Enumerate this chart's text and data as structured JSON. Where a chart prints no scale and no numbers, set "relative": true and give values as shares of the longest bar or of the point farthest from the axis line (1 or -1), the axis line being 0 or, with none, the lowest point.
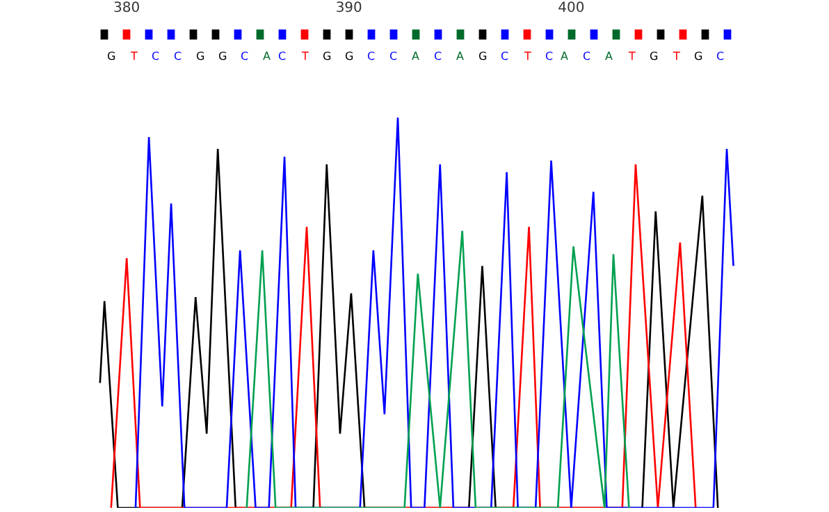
{
  "chart_data": {
    "type": "line",
    "relative": true,
    "marker": "none",
    "line_style": "solid",
    "xlim": [
      374.3,
      411.6
    ],
    "xticks": [
      380,
      390,
      400
    ],
    "annotations": [
      "G",
      "T",
      "C",
      "C",
      "G",
      "G",
      "C",
      "A",
      "C",
      "T",
      "G",
      "G",
      "C",
      "C",
      "A",
      "C",
      "A",
      "G",
      "C",
      "T",
      "C",
      "A",
      "C",
      "A",
      "T",
      "G",
      "T",
      "G",
      "C"
    ],
    "colors": [
      "#000000",
      "#ff0000",
      "#0000ff",
      "#0000ff",
      "#000000",
      "#000000",
      "#0000ff",
      "#006a2a",
      "#0000ff",
      "#ff0000",
      "#000000",
      "#000000",
      "#0000ff",
      "#0000ff",
      "#006a2a",
      "#0000ff",
      "#006a2a",
      "#000000",
      "#0000ff",
      "#ff0000",
      "#0000ff",
      "#006a2a",
      "#0000ff",
      "#006a2a",
      "#ff0000",
      "#000000",
      "#ff0000",
      "#000000",
      "#0000ff"
    ],
    "series": [
      {
        "color": "#000000",
        "x": [
          378.8,
          379.0,
          379.6,
          382.5,
          383.1,
          383.6,
          384.1,
          384.9,
          388.4,
          389.0,
          389.6,
          390.1,
          390.7,
          395.4,
          396.0,
          396.6,
          403.2,
          403.8,
          404.6,
          405.9,
          406.6
        ],
        "values": [
          0.32,
          0.53,
          0,
          0,
          0.54,
          0.19,
          0.92,
          0,
          0,
          0.88,
          0.19,
          0.55,
          0,
          0,
          0.62,
          0,
          0,
          0.76,
          0,
          0.8,
          0
        ]
      },
      {
        "color": "#ff0000",
        "x": [
          379.3,
          380.0,
          380.6,
          387.4,
          388.1,
          388.7,
          397.4,
          398.1,
          398.6,
          402.3,
          402.9,
          403.9,
          404.9,
          405.6
        ],
        "values": [
          0,
          0.64,
          0,
          0,
          0.72,
          0,
          0,
          0.72,
          0,
          0,
          0.88,
          0,
          0.68,
          0
        ]
      },
      {
        "color": "#0000ff",
        "x": [
          380.4,
          381.0,
          381.6,
          382.0,
          382.6,
          384.5,
          385.1,
          385.8,
          386.4,
          387.1,
          387.6,
          390.5,
          391.1,
          391.6,
          392.2,
          392.8,
          393.4,
          394.1,
          394.7,
          396.4,
          397.1,
          397.6,
          398.4,
          399.1,
          400.0,
          401.0,
          401.6,
          406.4,
          407.0,
          407.3
        ],
        "values": [
          0,
          0.95,
          0.26,
          0.78,
          0,
          0,
          0.66,
          0,
          0,
          0.9,
          0,
          0,
          0.66,
          0.24,
          1,
          0,
          0,
          0.88,
          0,
          0,
          0.86,
          0,
          0,
          0.89,
          0,
          0.81,
          0,
          0,
          0.92,
          0.62
        ]
      },
      {
        "color": "#00a050",
        "x": [
          385.4,
          386.1,
          386.7,
          392.5,
          393.1,
          394.1,
          395.1,
          395.7,
          399.4,
          400.1,
          401.5,
          401.9,
          402.6
        ],
        "values": [
          0,
          0.66,
          0,
          0,
          0.6,
          0,
          0.71,
          0,
          0,
          0.67,
          0,
          0.65,
          0
        ]
      }
    ]
  }
}
